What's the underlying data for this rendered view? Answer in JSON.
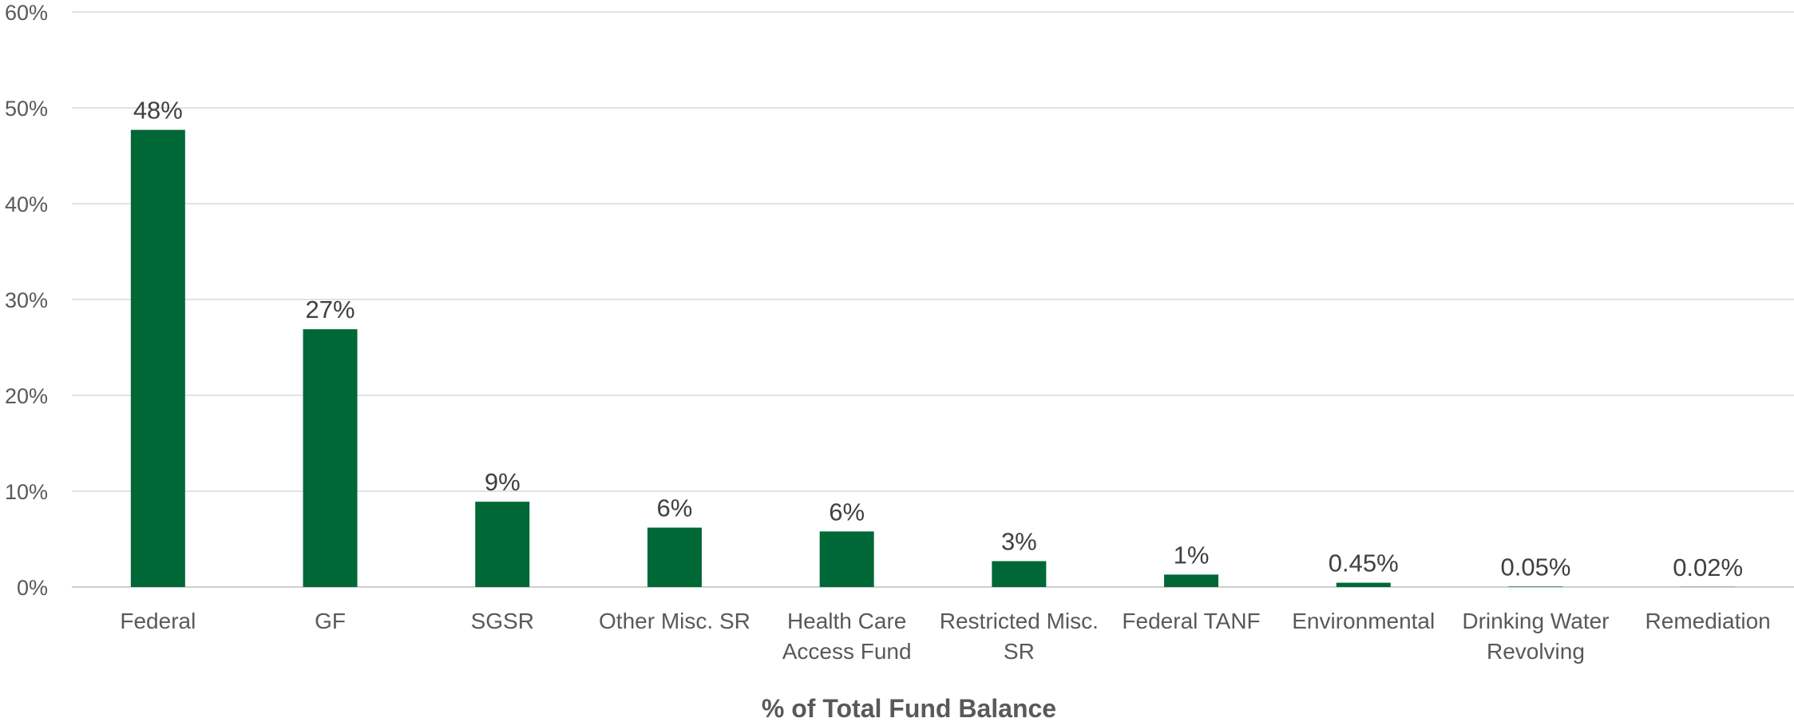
{
  "chart_data": {
    "type": "bar",
    "categories": [
      [
        "Federal"
      ],
      [
        "GF"
      ],
      [
        "SGSR"
      ],
      [
        "Other Misc. SR"
      ],
      [
        "Health Care",
        "Access Fund"
      ],
      [
        "Restricted Misc.",
        "SR"
      ],
      [
        "Federal TANF"
      ],
      [
        "Environmental"
      ],
      [
        "Drinking Water",
        "Revolving"
      ],
      [
        "Remediation"
      ]
    ],
    "values": [
      47.7,
      26.9,
      8.9,
      6.2,
      5.8,
      2.7,
      1.3,
      0.45,
      0.05,
      0.02
    ],
    "data_labels": [
      "48%",
      "27%",
      "9%",
      "6%",
      "6%",
      "3%",
      "1%",
      "0.45%",
      "0.05%",
      "0.02%"
    ],
    "xlabel": "% of Total Fund Balance",
    "ylabel": "",
    "ylim": [
      0,
      60
    ],
    "yticks": [
      0,
      10,
      20,
      30,
      40,
      50,
      60
    ],
    "ytick_labels": [
      "0%",
      "10%",
      "20%",
      "30%",
      "40%",
      "50%",
      "60%"
    ],
    "grid": true,
    "legend": "none",
    "bar_color": "#006837"
  }
}
